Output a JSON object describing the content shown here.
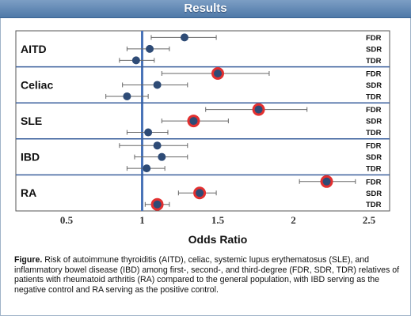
{
  "header": {
    "title": "Results"
  },
  "caption": {
    "label": "Figure.",
    "text": "Risk of autoimmune thyroiditis (AITD), celiac, systemic lupus erythematosus (SLE), and inflammatory bowel disease (IBD) among first-, second-, and third-degree (FDR, SDR, TDR) relatives of patients with rheumatoid arthritis (RA) compared to the general population, with IBD serving as the negative control and RA serving as the positive control."
  },
  "colors": {
    "header": "#5a82b0",
    "point": "#2e4b76",
    "highlight": "#e23030",
    "reference_line": "#4a74b8",
    "separator": "#3a5f9c"
  },
  "chart_data": {
    "type": "forest",
    "xlabel": "Odds Ratio",
    "xlim": [
      0.35,
      2.62
    ],
    "xticks": [
      0.5,
      1,
      1.5,
      2,
      2.5
    ],
    "xtick_labels": [
      "0.5",
      "1",
      "1.5",
      "2",
      "2.5"
    ],
    "reference_line": 1,
    "groups": [
      {
        "name": "AITD",
        "rows": [
          {
            "label": "FDR",
            "or": 1.28,
            "lo": 1.06,
            "hi": 1.49,
            "significant": false
          },
          {
            "label": "SDR",
            "or": 1.05,
            "lo": 0.9,
            "hi": 1.18,
            "significant": false
          },
          {
            "label": "TDR",
            "or": 0.96,
            "lo": 0.85,
            "hi": 1.08,
            "significant": false
          }
        ]
      },
      {
        "name": "Celiac",
        "rows": [
          {
            "label": "FDR",
            "or": 1.5,
            "lo": 1.13,
            "hi": 1.84,
            "significant": true
          },
          {
            "label": "SDR",
            "or": 1.1,
            "lo": 0.87,
            "hi": 1.3,
            "significant": false
          },
          {
            "label": "TDR",
            "or": 0.9,
            "lo": 0.76,
            "hi": 1.04,
            "significant": false
          }
        ]
      },
      {
        "name": "SLE",
        "rows": [
          {
            "label": "FDR",
            "or": 1.77,
            "lo": 1.42,
            "hi": 2.09,
            "significant": true
          },
          {
            "label": "SDR",
            "or": 1.34,
            "lo": 1.13,
            "hi": 1.57,
            "significant": true
          },
          {
            "label": "TDR",
            "or": 1.04,
            "lo": 0.9,
            "hi": 1.17,
            "significant": false
          }
        ]
      },
      {
        "name": "IBD",
        "rows": [
          {
            "label": "FDR",
            "or": 1.1,
            "lo": 0.85,
            "hi": 1.3,
            "significant": false
          },
          {
            "label": "SDR",
            "or": 1.13,
            "lo": 0.95,
            "hi": 1.3,
            "significant": false
          },
          {
            "label": "TDR",
            "or": 1.03,
            "lo": 0.9,
            "hi": 1.15,
            "significant": false
          }
        ]
      },
      {
        "name": "RA",
        "rows": [
          {
            "label": "FDR",
            "or": 2.22,
            "lo": 2.04,
            "hi": 2.41,
            "significant": true
          },
          {
            "label": "SDR",
            "or": 1.38,
            "lo": 1.24,
            "hi": 1.49,
            "significant": true
          },
          {
            "label": "TDR",
            "or": 1.1,
            "lo": 1.02,
            "hi": 1.18,
            "significant": true
          }
        ]
      }
    ]
  }
}
